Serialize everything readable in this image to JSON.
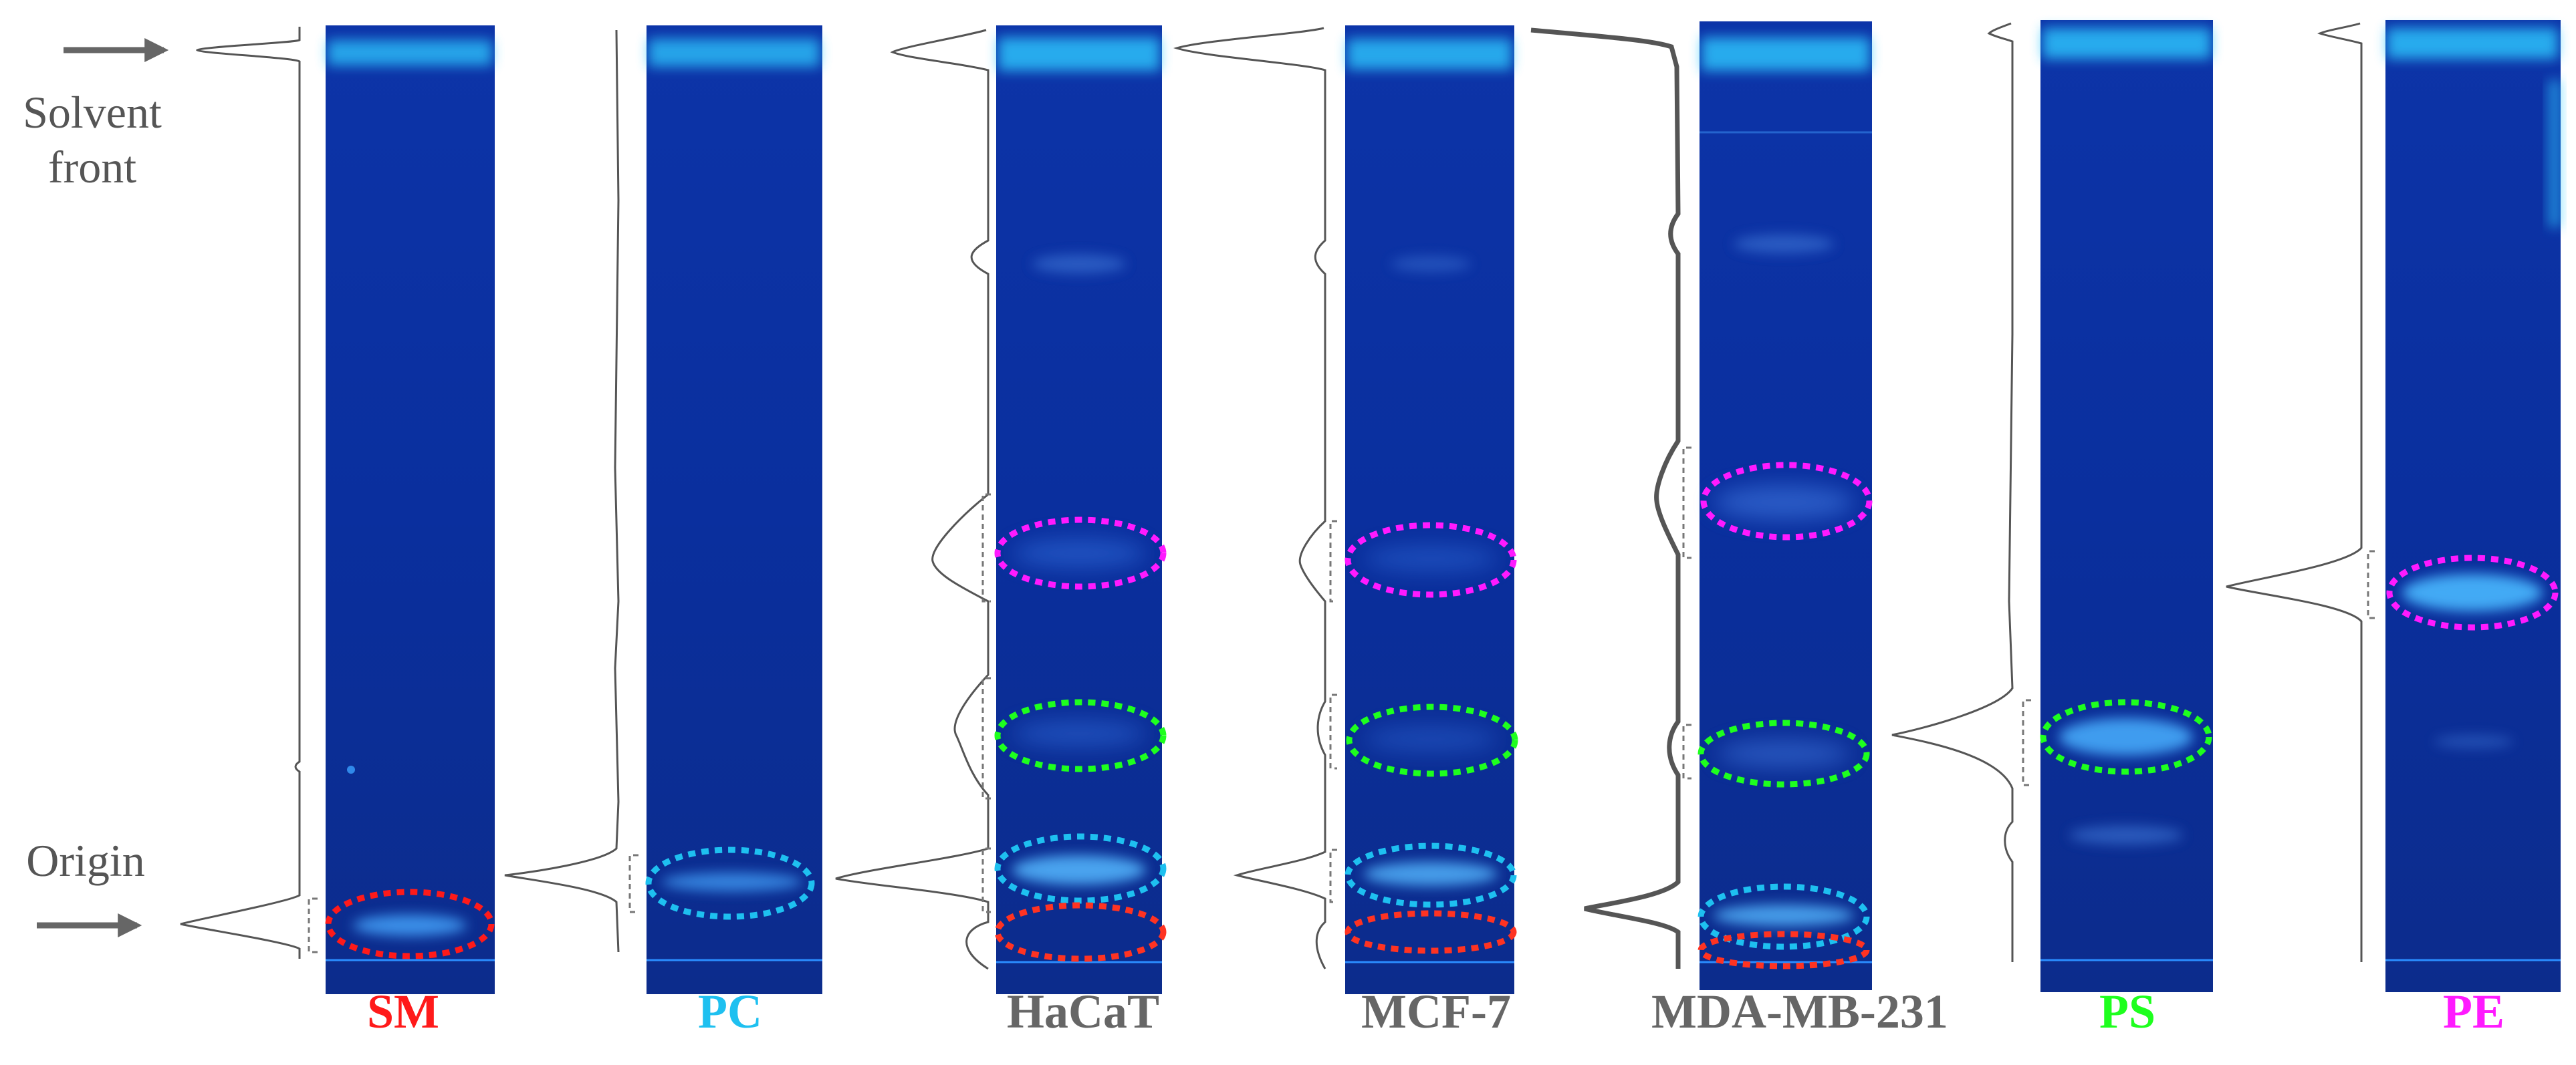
{
  "annotations": {
    "solvent_front_line1": "Solvent",
    "solvent_front_line2": "front",
    "origin": "Origin"
  },
  "colors": {
    "plate": "#0b2f9c",
    "plate_bottom": "#102f8f",
    "front_glow": "#2fc9ff",
    "profile_line": "#555555",
    "arrow": "#666666",
    "SM": "#ff1a1a",
    "PC": "#1ec0f0",
    "cell": "#666666",
    "PS": "#1eff1e",
    "PE": "#ff1aff"
  },
  "lanes": [
    {
      "id": "SM",
      "label": "SM",
      "color_key": "SM",
      "ring_keys": [
        "SM"
      ]
    },
    {
      "id": "PC",
      "label": "PC",
      "color_key": "PC",
      "ring_keys": [
        "PC"
      ]
    },
    {
      "id": "HaCaT",
      "label": "HaCaT",
      "color_key": "cell",
      "ring_keys": [
        "PE",
        "PS",
        "PC",
        "SM"
      ]
    },
    {
      "id": "MCF-7",
      "label": "MCF-7",
      "color_key": "cell",
      "ring_keys": [
        "PE",
        "PS",
        "PC",
        "SM"
      ]
    },
    {
      "id": "MDA-MB-231",
      "label": "MDA-MB-231",
      "color_key": "cell",
      "ring_keys": [
        "PE",
        "PS",
        "PC",
        "SM"
      ]
    },
    {
      "id": "PS",
      "label": "PS",
      "color_key": "PS",
      "ring_keys": [
        "PS"
      ]
    },
    {
      "id": "PE",
      "label": "PE",
      "color_key": "PE",
      "ring_keys": [
        "PE"
      ]
    }
  ]
}
